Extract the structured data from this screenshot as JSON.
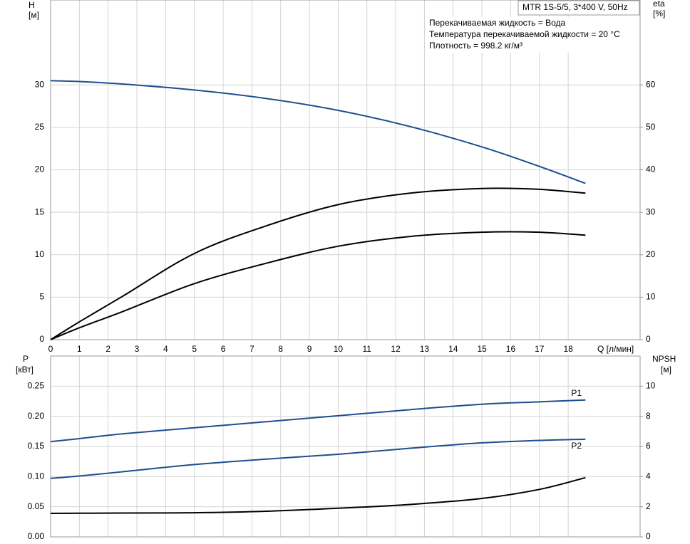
{
  "chart_data": [
    {
      "type": "line",
      "y_label": "H",
      "y_unit": "[м]",
      "y2_label": "eta",
      "y2_unit": "[%]",
      "x_label": "Q [л/мин]",
      "model": "MTR 1S-5/5, 3*400 V, 50Hz",
      "annotations": [
        "Перекачиваемая жидкость = Вода",
        "Температура перекачиваемой жидкости = 20 °C",
        "Плотность = 998.2 кг/м³"
      ],
      "x": [
        0,
        1,
        2.5,
        5,
        7.5,
        10,
        12.5,
        15,
        17,
        18.6
      ],
      "xlim": [
        0,
        20.5
      ],
      "xticks": [
        0,
        1,
        2,
        3,
        4,
        5,
        6,
        7,
        8,
        9,
        10,
        11,
        12,
        13,
        14,
        15,
        16,
        17,
        18
      ],
      "ylim": [
        0,
        40
      ],
      "yticks": [
        0,
        5,
        10,
        15,
        20,
        25,
        30
      ],
      "y2lim": [
        0,
        80
      ],
      "y2ticks": [
        0,
        10,
        20,
        30,
        40,
        50,
        60
      ],
      "grid": true,
      "series": [
        {
          "color": "#1f4e8c",
          "values": [
            30.5,
            30.4,
            30.1,
            29.4,
            28.4,
            27.0,
            25.1,
            22.7,
            20.4,
            18.4
          ]
        },
        {
          "color": "#000000",
          "axis": "y2",
          "values": [
            0,
            4.2,
            10.2,
            20.3,
            26.8,
            31.8,
            34.5,
            35.6,
            35.4,
            34.5
          ]
        },
        {
          "color": "#000000",
          "axis": "y2",
          "values": [
            0,
            2.8,
            6.6,
            13.2,
            18.0,
            22.0,
            24.3,
            25.3,
            25.3,
            24.6
          ]
        }
      ]
    },
    {
      "type": "line",
      "y_label": "P",
      "y_unit": "[кВт]",
      "y2_label": "NPSH",
      "y2_unit": "[м]",
      "x": [
        0,
        1,
        2.5,
        5,
        7.5,
        10,
        12.5,
        15,
        17,
        18.6
      ],
      "xlim": [
        0,
        20.5
      ],
      "ylim": [
        0,
        0.3
      ],
      "yticks": [
        {
          "value": 0,
          "label": "0.00"
        },
        {
          "value": 0.05,
          "label": "0.05"
        },
        {
          "value": 0.1,
          "label": "0.10"
        },
        {
          "value": 0.15,
          "label": "0.15"
        },
        {
          "value": 0.2,
          "label": "0.20"
        },
        {
          "value": 0.25,
          "label": "0.25"
        }
      ],
      "y2lim": [
        0,
        12
      ],
      "y2ticks": [
        0,
        2,
        4,
        6,
        8,
        10
      ],
      "grid": true,
      "series": [
        {
          "name": "P1",
          "color": "#1f4e8c",
          "values": [
            0.158,
            0.163,
            0.171,
            0.181,
            0.191,
            0.201,
            0.211,
            0.22,
            0.224,
            0.227
          ]
        },
        {
          "name": "P2",
          "color": "#1f4e8c",
          "values": [
            0.097,
            0.101,
            0.108,
            0.12,
            0.129,
            0.137,
            0.147,
            0.156,
            0.16,
            0.162
          ]
        },
        {
          "color": "#000000",
          "axis": "y2",
          "values": [
            1.56,
            1.57,
            1.58,
            1.6,
            1.7,
            1.9,
            2.15,
            2.55,
            3.15,
            3.93
          ]
        }
      ]
    }
  ]
}
